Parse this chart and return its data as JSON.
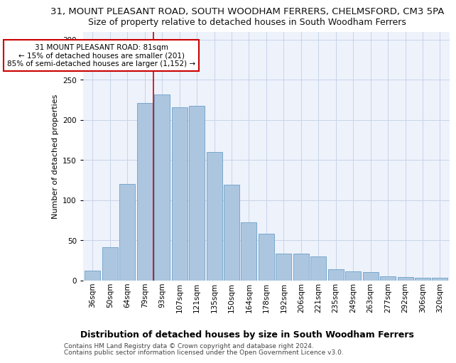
{
  "title": "31, MOUNT PLEASANT ROAD, SOUTH WOODHAM FERRERS, CHELMSFORD, CM3 5PA",
  "subtitle": "Size of property relative to detached houses in South Woodham Ferrers",
  "xlabel": "Distribution of detached houses by size in South Woodham Ferrers",
  "ylabel": "Number of detached properties",
  "categories": [
    "36sqm",
    "50sqm",
    "64sqm",
    "79sqm",
    "93sqm",
    "107sqm",
    "121sqm",
    "135sqm",
    "150sqm",
    "164sqm",
    "178sqm",
    "192sqm",
    "206sqm",
    "221sqm",
    "235sqm",
    "249sqm",
    "263sqm",
    "277sqm",
    "292sqm",
    "306sqm",
    "320sqm"
  ],
  "values": [
    12,
    41,
    120,
    221,
    232,
    216,
    217,
    160,
    119,
    72,
    58,
    33,
    33,
    30,
    14,
    11,
    10,
    5,
    4,
    3,
    3
  ],
  "bar_color": "#adc6e0",
  "bar_edge_color": "#6aa0c8",
  "grid_color": "#c8d4e8",
  "background_color": "#eef2fb",
  "annotation_box_color": "#ffffff",
  "annotation_border_color": "#cc0000",
  "redline_index": 3,
  "annotation_line1": "31 MOUNT PLEASANT ROAD: 81sqm",
  "annotation_line2": "← 15% of detached houses are smaller (201)",
  "annotation_line3": "85% of semi-detached houses are larger (1,152) →",
  "footer1": "Contains HM Land Registry data © Crown copyright and database right 2024.",
  "footer2": "Contains public sector information licensed under the Open Government Licence v3.0.",
  "ylim": [
    0,
    310
  ],
  "title_fontsize": 9.5,
  "subtitle_fontsize": 9,
  "xlabel_fontsize": 9,
  "ylabel_fontsize": 8,
  "tick_fontsize": 7.5,
  "annotation_fontsize": 7.5,
  "footer_fontsize": 6.5
}
